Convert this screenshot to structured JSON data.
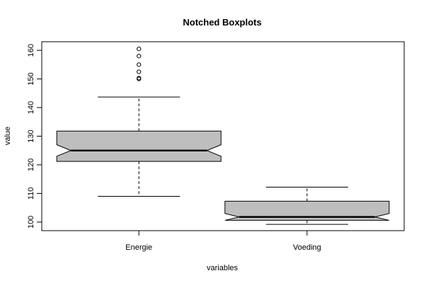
{
  "chart_data": {
    "type": "boxplot",
    "notched": true,
    "title": "Notched Boxplots",
    "xlabel": "variables",
    "ylabel": "value",
    "ylim": [
      97,
      163
    ],
    "yticks": [
      100,
      110,
      120,
      130,
      140,
      150,
      160
    ],
    "categories": [
      "Energie",
      "Voeding"
    ],
    "boxes": [
      {
        "category": "Energie",
        "whisker_low": 109,
        "q1": 121.2,
        "median": 125,
        "q3": 131.8,
        "whisker_high": 143.7,
        "notch_low": 123,
        "notch_high": 127,
        "outliers": [
          150,
          150.3,
          152.5,
          155,
          158,
          160.5
        ]
      },
      {
        "category": "Voeding",
        "whisker_low": 99.2,
        "q1": 100.6,
        "median": 101.8,
        "q3": 107.3,
        "whisker_high": 112.2,
        "notch_low": 100.6,
        "notch_high": 103,
        "outliers": []
      }
    ],
    "colors": {
      "box_fill": "#bebebe",
      "stroke": "#000000"
    }
  }
}
